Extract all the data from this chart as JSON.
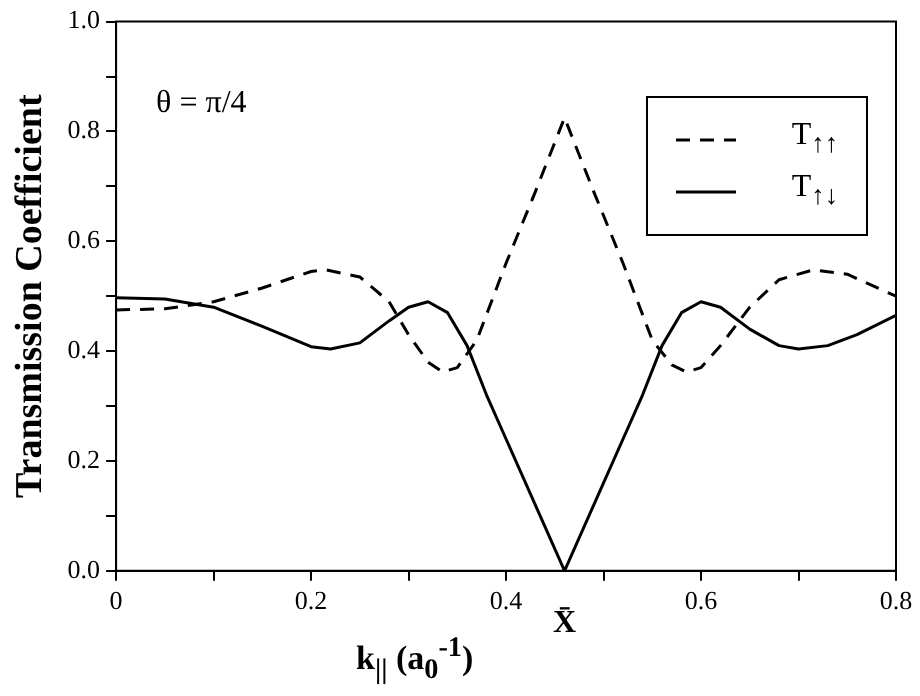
{
  "chart_data": {
    "type": "line",
    "xlabel": "k$_{||}$ (a$_{0}$$^{-1}$)",
    "ylabel": "Transmission Coefficient",
    "annotations": [
      "θ = π/4",
      {
        "text": "X̄",
        "x": 0.46,
        "y": 0
      }
    ],
    "xlim": [
      0,
      0.8
    ],
    "xticks": [
      0,
      {
        "value": 0.1,
        "label": null
      },
      0.2,
      {
        "value": 0.3,
        "label": null
      },
      0.4,
      {
        "value": 0.5,
        "label": null
      },
      0.6,
      {
        "value": 0.7,
        "label": null
      },
      0.8
    ],
    "ylim": [
      0,
      1
    ],
    "yticks": [
      {
        "value": 0,
        "label": "0.0"
      },
      {
        "value": 0.1,
        "label": null
      },
      {
        "value": 0.2,
        "label": "0.2"
      },
      {
        "value": 0.3,
        "label": null
      },
      {
        "value": 0.4,
        "label": "0.4"
      },
      {
        "value": 0.5,
        "label": null
      },
      {
        "value": 0.6,
        "label": "0.6"
      },
      {
        "value": 0.7,
        "label": null
      },
      {
        "value": 0.8,
        "label": "0.8"
      },
      {
        "value": 0.9,
        "label": null
      },
      {
        "value": 1,
        "label": "1.0"
      }
    ],
    "grid": false,
    "legend": "top right",
    "marker": "none",
    "series": [
      {
        "name": "T$_{↑↑}$",
        "color": "#000000",
        "line_style": "dashed",
        "x": [
          0,
          0.05,
          0.1,
          0.15,
          0.2,
          0.215,
          0.25,
          0.28,
          0.3,
          0.32,
          0.335,
          0.35,
          0.37,
          0.4,
          0.43,
          0.46,
          0.49,
          0.52,
          0.55,
          0.57,
          0.585,
          0.6,
          0.62,
          0.65,
          0.68,
          0.715,
          0.75,
          0.8
        ],
        "values": [
          0.475,
          0.477,
          0.49,
          0.515,
          0.545,
          0.548,
          0.535,
          0.49,
          0.43,
          0.38,
          0.362,
          0.37,
          0.42,
          0.56,
          0.69,
          0.825,
          0.69,
          0.56,
          0.42,
          0.375,
          0.362,
          0.37,
          0.41,
          0.48,
          0.53,
          0.548,
          0.54,
          0.5
        ]
      },
      {
        "name": "T$_{↑↓}$",
        "color": "#000000",
        "line_style": "solid",
        "x": [
          0,
          0.05,
          0.1,
          0.15,
          0.2,
          0.22,
          0.25,
          0.28,
          0.3,
          0.32,
          0.34,
          0.36,
          0.38,
          0.4,
          0.43,
          0.46,
          0.49,
          0.52,
          0.54,
          0.56,
          0.58,
          0.6,
          0.62,
          0.65,
          0.68,
          0.7,
          0.73,
          0.76,
          0.8
        ],
        "values": [
          0.497,
          0.495,
          0.48,
          0.445,
          0.408,
          0.404,
          0.415,
          0.455,
          0.48,
          0.49,
          0.47,
          0.41,
          0.32,
          0.24,
          0.12,
          0,
          0.12,
          0.24,
          0.32,
          0.41,
          0.47,
          0.49,
          0.48,
          0.44,
          0.41,
          0.404,
          0.41,
          0.43,
          0.465
        ]
      }
    ]
  }
}
